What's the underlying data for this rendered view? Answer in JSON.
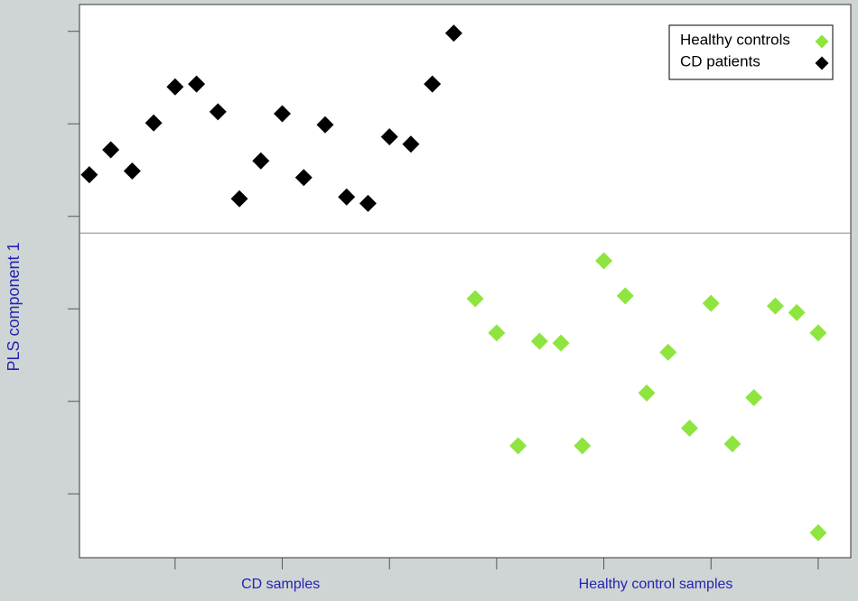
{
  "chart_data": {
    "type": "scatter",
    "ylabel": "PLS component 1",
    "xlim": [
      0.54,
      36.52
    ],
    "xticks": [
      5,
      10,
      15,
      20,
      25,
      30,
      35
    ],
    "ylim": [
      0.31,
      6.29
    ],
    "yticks": [
      1,
      2,
      3,
      4,
      5,
      6
    ],
    "hline": 3.82,
    "legend": "upper right",
    "series": [
      {
        "name": "Healthy controls",
        "color": "#8ee53f",
        "group_label": "Healthy control samples",
        "x": [
          19,
          20,
          21,
          22,
          23,
          24,
          25,
          26,
          27,
          28,
          29,
          30,
          31,
          32,
          33,
          34,
          35,
          35
        ],
        "values": [
          3.11,
          2.74,
          1.52,
          2.65,
          2.63,
          1.52,
          3.52,
          3.14,
          2.09,
          2.53,
          1.71,
          3.06,
          1.54,
          2.04,
          3.03,
          2.96,
          2.74,
          0.58
        ]
      },
      {
        "name": "CD patients",
        "color": "#000000",
        "group_label": "CD samples",
        "x": [
          1,
          2,
          3,
          4,
          5,
          6,
          7,
          8,
          9,
          10,
          11,
          12,
          13,
          14,
          15,
          16,
          17,
          18
        ],
        "values": [
          4.45,
          4.72,
          4.49,
          5.01,
          5.4,
          5.43,
          5.13,
          4.19,
          4.6,
          5.11,
          4.42,
          4.99,
          4.21,
          4.14,
          4.86,
          4.78,
          5.43,
          5.98
        ]
      }
    ]
  }
}
